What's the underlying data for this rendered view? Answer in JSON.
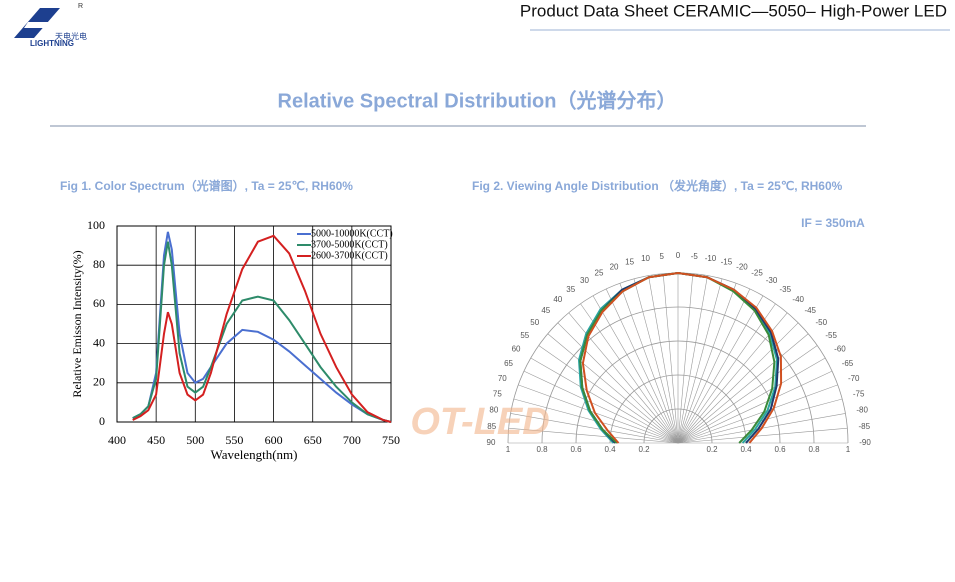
{
  "header": {
    "logo_text": "天电光电",
    "logo_brand": "LIGHTNING",
    "logo_mark": "R",
    "title": "Product Data Sheet CERAMIC—5050– High-Power LED"
  },
  "section_title": "Relative Spectral Distribution（光谱分布）",
  "watermark": "OT-LED",
  "chart_data": [
    {
      "type": "line",
      "title": "Fig 1. Color Spectrum（光谱图）, Ta = 25℃, RH60%",
      "x_label": "Wavelength(nm)",
      "y_label": "Relative Emisson Intensity(%)",
      "x": [
        420,
        430,
        440,
        450,
        460,
        465,
        470,
        480,
        490,
        500,
        510,
        520,
        540,
        560,
        580,
        600,
        620,
        640,
        660,
        680,
        700,
        720,
        740,
        750
      ],
      "series": [
        {
          "name": "5000-10000K(CCT)",
          "color": "#4a6fd0",
          "values": [
            2,
            4,
            8,
            25,
            85,
            97,
            88,
            45,
            25,
            20,
            22,
            28,
            40,
            47,
            46,
            42,
            36,
            29,
            22,
            15,
            9,
            4,
            1,
            0
          ]
        },
        {
          "name": "3700-5000K(CCT)",
          "color": "#2e8b6a",
          "values": [
            2,
            4,
            8,
            22,
            80,
            92,
            80,
            35,
            18,
            15,
            18,
            28,
            50,
            62,
            64,
            62,
            52,
            40,
            28,
            18,
            10,
            4,
            1,
            0
          ]
        },
        {
          "name": "2600-3700K(CCT)",
          "color": "#d42020",
          "values": [
            1,
            3,
            6,
            14,
            45,
            56,
            50,
            25,
            14,
            11,
            14,
            25,
            55,
            78,
            92,
            95,
            86,
            67,
            45,
            28,
            14,
            5,
            1,
            0
          ]
        }
      ],
      "xlim": [
        400,
        750
      ],
      "xticks": [
        400,
        450,
        500,
        550,
        600,
        650,
        700,
        750
      ],
      "ylim": [
        0,
        100
      ],
      "yticks": [
        0,
        20,
        40,
        60,
        80,
        100
      ],
      "grid": true,
      "legend": "upper right"
    },
    {
      "type": "polar",
      "title": "Fig 2. Viewing Angle Distribution （发光角度）, Ta = 25℃, RH60%",
      "annotation": "IF = 350mA",
      "theta": [
        -90,
        -80,
        -70,
        -60,
        -50,
        -40,
        -30,
        -20,
        -10,
        0,
        10,
        20,
        30,
        40,
        50,
        60,
        70,
        80,
        90
      ],
      "series": [
        {
          "color": "#2aa6a0",
          "values": [
            0.38,
            0.46,
            0.56,
            0.66,
            0.76,
            0.84,
            0.91,
            0.96,
            0.99,
            1,
            0.99,
            0.96,
            0.91,
            0.84,
            0.76,
            0.66,
            0.56,
            0.46,
            0.38
          ]
        },
        {
          "color": "#1f3a6e",
          "values": [
            0.4,
            0.48,
            0.58,
            0.67,
            0.77,
            0.85,
            0.91,
            0.96,
            0.99,
            1,
            0.99,
            0.96,
            0.9,
            0.83,
            0.75,
            0.65,
            0.55,
            0.45,
            0.37
          ]
        },
        {
          "color": "#3a8a3a",
          "values": [
            0.36,
            0.44,
            0.54,
            0.64,
            0.74,
            0.83,
            0.9,
            0.95,
            0.99,
            1,
            0.99,
            0.95,
            0.9,
            0.83,
            0.75,
            0.65,
            0.55,
            0.45,
            0.36
          ]
        },
        {
          "color": "#d05020",
          "values": [
            0.42,
            0.5,
            0.6,
            0.7,
            0.79,
            0.86,
            0.92,
            0.96,
            0.99,
            1,
            0.99,
            0.95,
            0.89,
            0.82,
            0.73,
            0.62,
            0.52,
            0.42,
            0.35
          ]
        }
      ],
      "rlim": [
        0,
        1
      ],
      "rticks": [
        0.2,
        0.4,
        0.6,
        0.8,
        1
      ],
      "theta_ticks": [
        -90,
        -85,
        -80,
        -75,
        -70,
        -65,
        -60,
        -55,
        -50,
        -45,
        -40,
        -35,
        -30,
        -25,
        -20,
        -15,
        -10,
        -5,
        0,
        5,
        10,
        15,
        20,
        25,
        30,
        35,
        40,
        45,
        50,
        55,
        60,
        65,
        70,
        75,
        80,
        85,
        90
      ],
      "grid": true
    }
  ]
}
